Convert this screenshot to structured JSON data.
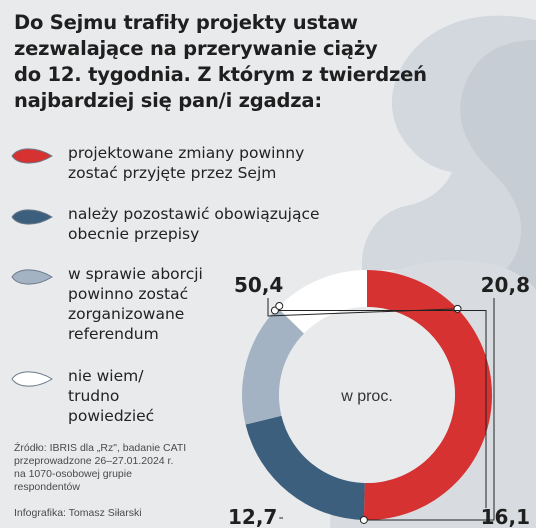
{
  "title_lines": [
    "Do Sejmu trafiły projekty ustaw",
    "zezwalające na przerywanie ciąży",
    "do 12. tygodnia. Z którym z twierdzeń",
    "najbardziej się pan/i zgadza:"
  ],
  "legend": [
    {
      "lines": [
        "projektowane zmiany powinny",
        "zostać przyjęte przez Sejm"
      ],
      "color": "#d63232"
    },
    {
      "lines": [
        "należy pozostawić obowiązujące",
        "obecnie przepisy"
      ],
      "color": "#3c5f7e"
    },
    {
      "lines": [
        "w sprawie aborcji",
        "powinno zostać",
        "zorganizowane",
        "referendum"
      ],
      "color": "#a3b3c3"
    },
    {
      "lines": [
        "nie wiem/",
        "trudno",
        "powiedzieć"
      ],
      "color": "#ffffff"
    }
  ],
  "source_lines": [
    "Źródło: IBRIS dla „Rz\", badanie CATI",
    "przeprowadzone 26–27.01.2024 r.",
    "na 1070-osobowej grupie",
    "respondentów"
  ],
  "credit": "Infografika: Tomasz Siłarski",
  "chart_data": {
    "type": "pie",
    "donut": true,
    "center_label": "w proc.",
    "categories": [
      "projektowane zmiany powinny zostać przyjęte przez Sejm",
      "należy pozostawić obowiązujące obecnie przepisy",
      "w sprawie aborcji powinno zostać zorganizowane referendum",
      "nie wiem/ trudno powiedzieć"
    ],
    "values": [
      50.4,
      20.8,
      16.1,
      12.7
    ],
    "value_labels": [
      "50,4",
      "20,8",
      "16,1",
      "12,7"
    ],
    "colors": [
      "#d63232",
      "#3c5f7e",
      "#a3b3c3",
      "#ffffff"
    ]
  }
}
